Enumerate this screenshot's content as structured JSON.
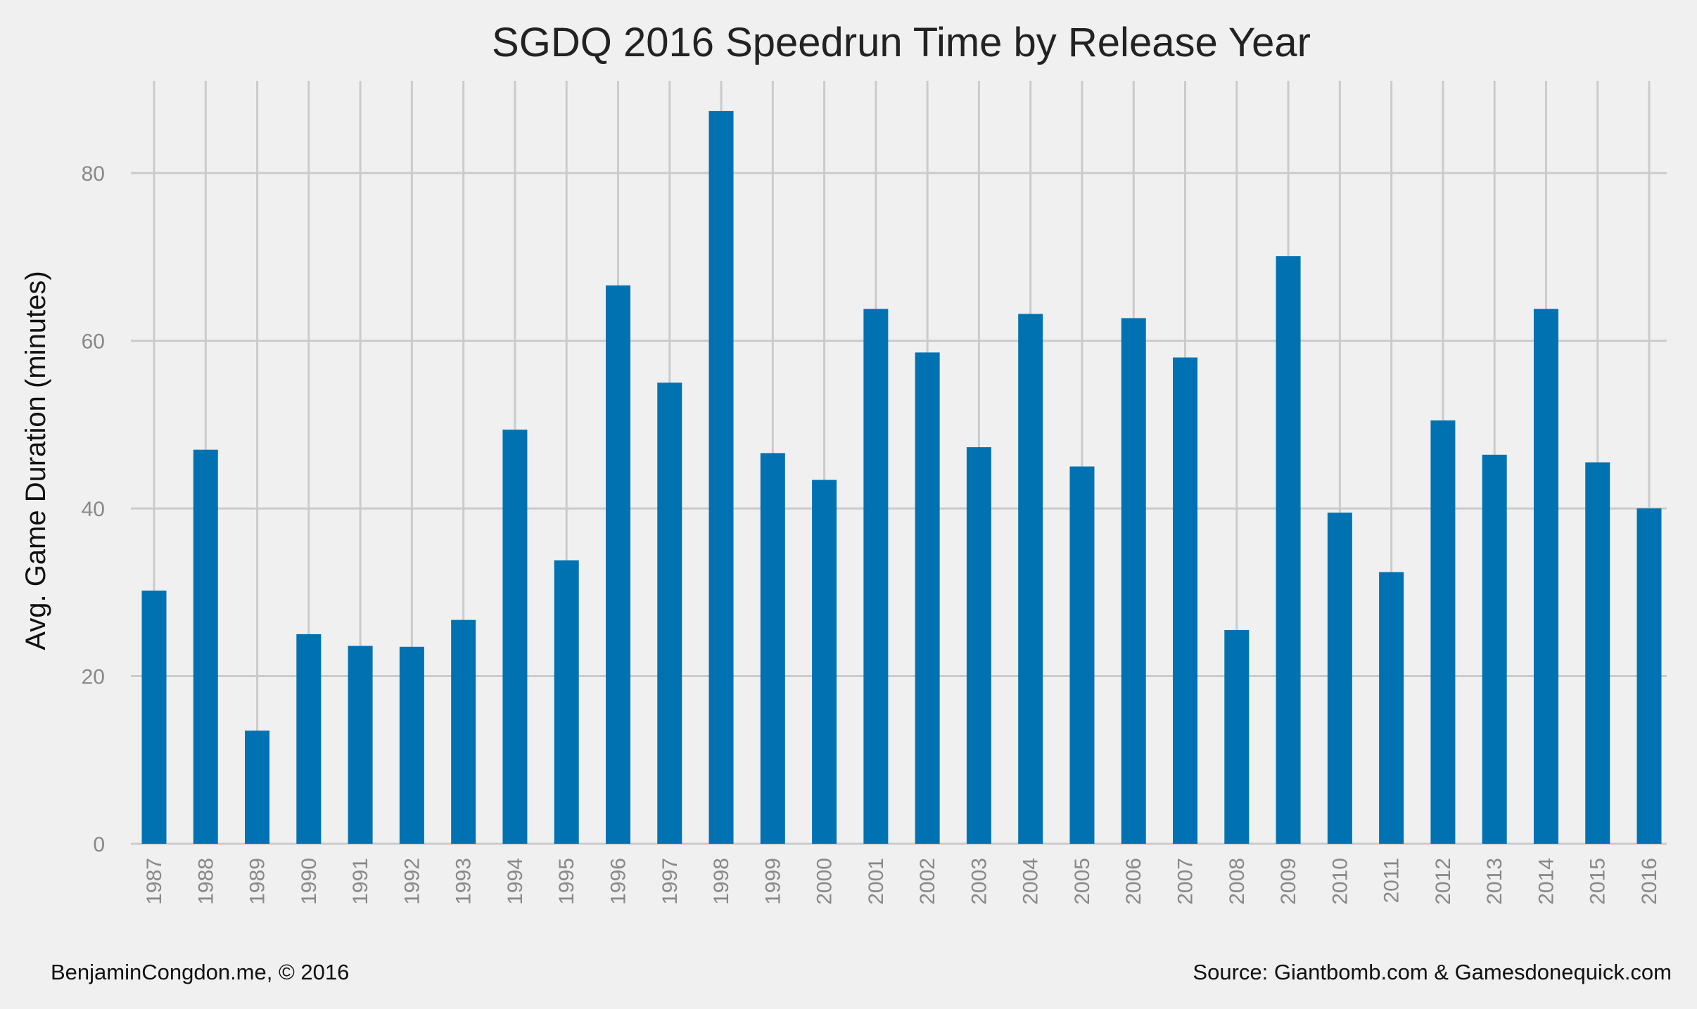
{
  "chart_data": {
    "type": "bar",
    "title": "SGDQ 2016 Speedrun Time by Release Year",
    "xlabel": "",
    "ylabel": "Avg. Game Duration (minutes)",
    "ylim": [
      0,
      91
    ],
    "yticks": [
      "0",
      "20",
      "40",
      "60",
      "80"
    ],
    "grid": true,
    "categories": [
      "1987",
      "1988",
      "1989",
      "1990",
      "1991",
      "1992",
      "1993",
      "1994",
      "1995",
      "1996",
      "1997",
      "1998",
      "1999",
      "2000",
      "2001",
      "2002",
      "2003",
      "2004",
      "2005",
      "2006",
      "2007",
      "2008",
      "2009",
      "2010",
      "2011",
      "2012",
      "2013",
      "2014",
      "2015",
      "2016"
    ],
    "values": [
      30.2,
      47.0,
      13.5,
      25.0,
      23.6,
      23.5,
      26.7,
      49.4,
      33.8,
      66.6,
      55.0,
      87.4,
      46.6,
      43.4,
      63.8,
      58.6,
      47.3,
      63.2,
      45.0,
      62.7,
      58.0,
      25.5,
      70.1,
      39.5,
      32.4,
      50.5,
      46.4,
      63.8,
      45.5,
      40.0
    ],
    "bar_color": "#0072b2"
  },
  "footer": {
    "left": "BenjaminCongdon.me, © 2016",
    "right": "Source: Giantbomb.com & Gamesdonequick.com"
  },
  "colors": {
    "background": "#f0f0f0",
    "grid": "#cbcbcb"
  }
}
